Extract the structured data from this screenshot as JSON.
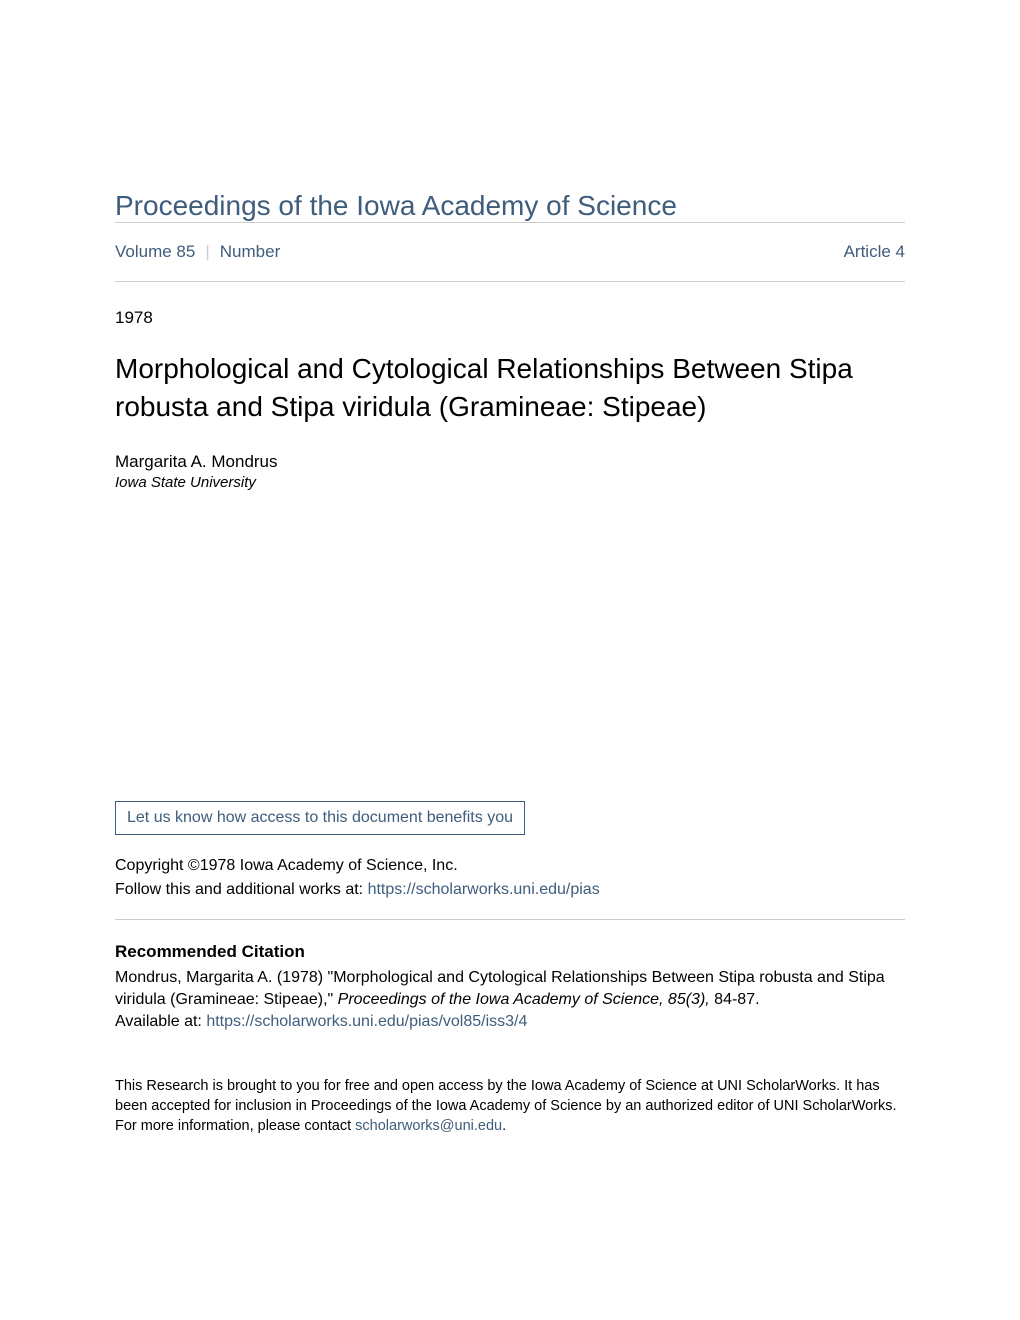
{
  "colors": {
    "link": "#3e5d7c",
    "text": "#000000",
    "divider": "#cccccc",
    "background": "#ffffff"
  },
  "journal": {
    "title": "Proceedings of the Iowa Academy of Science"
  },
  "nav": {
    "volume": "Volume 85",
    "number": "Number",
    "article": "Article 4"
  },
  "year": "1978",
  "article": {
    "title": "Morphological and Cytological Relationships Between Stipa robusta and Stipa viridula (Gramineae: Stipeae)"
  },
  "author": {
    "name": "Margarita A. Mondrus",
    "affiliation": "Iowa State University"
  },
  "benefits_link": "Let us know how access to this document benefits you",
  "copyright": "Copyright ©1978 Iowa Academy of Science, Inc.",
  "follow": {
    "prefix": "Follow this and additional works at: ",
    "url": "https://scholarworks.uni.edu/pias"
  },
  "citation": {
    "header": "Recommended Citation",
    "text_part1": "Mondrus, Margarita A. (1978) \"Morphological and Cytological Relationships Between Stipa robusta and Stipa viridula (Gramineae: Stipeae),\" ",
    "journal_italic": "Proceedings of the Iowa Academy of Science, 85(3),",
    "text_part2": " 84-87.",
    "available_prefix": "Available at: ",
    "available_url": "https://scholarworks.uni.edu/pias/vol85/iss3/4"
  },
  "footer": {
    "text_part1": "This Research is brought to you for free and open access by the Iowa Academy of Science at UNI ScholarWorks. It has been accepted for inclusion in Proceedings of the Iowa Academy of Science by an authorized editor of UNI ScholarWorks. For more information, please contact ",
    "email": "scholarworks@uni.edu",
    "text_part2": "."
  }
}
